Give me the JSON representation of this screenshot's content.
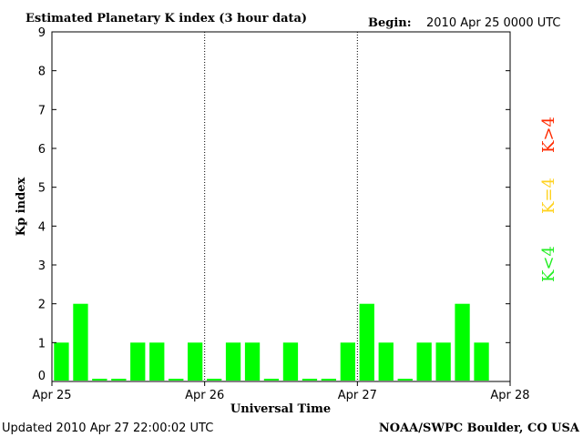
{
  "header": {
    "title": "Estimated Planetary K index (3 hour data)",
    "begin_label": "Begin:",
    "begin_value": "2010 Apr 25 0000 UTC"
  },
  "footer": {
    "updated_label": "Updated",
    "updated_value": "2010 Apr 27 22:00:02 UTC",
    "credit": "NOAA/SWPC Boulder, CO USA"
  },
  "legend": {
    "items": [
      {
        "label": "K>4",
        "color": "#ff2a00"
      },
      {
        "label": "K=4",
        "color": "#ffd21f"
      },
      {
        "label": "K<4",
        "color": "#22ee22"
      }
    ]
  },
  "chart_data": {
    "type": "bar",
    "title": "Estimated Planetary K index (3 hour data)",
    "xlabel": "Universal Time",
    "ylabel": "Kp index",
    "ylim": [
      0,
      9
    ],
    "yticks": [
      0,
      1,
      2,
      3,
      4,
      5,
      6,
      7,
      8,
      9
    ],
    "x_tick_labels": [
      "Apr 25",
      "Apr 26",
      "Apr 27",
      "Apr 28"
    ],
    "day_separators": [
      "Apr 26",
      "Apr 27"
    ],
    "interval_hours": 3,
    "bar_color": "#00ff00",
    "zero_value_stub": "0",
    "series": [
      {
        "values": [
          1,
          2,
          0,
          0,
          1,
          1,
          0,
          1,
          0,
          1,
          1,
          0,
          1,
          0,
          0,
          1,
          2,
          1,
          0,
          1,
          1,
          2,
          1
        ]
      }
    ]
  }
}
